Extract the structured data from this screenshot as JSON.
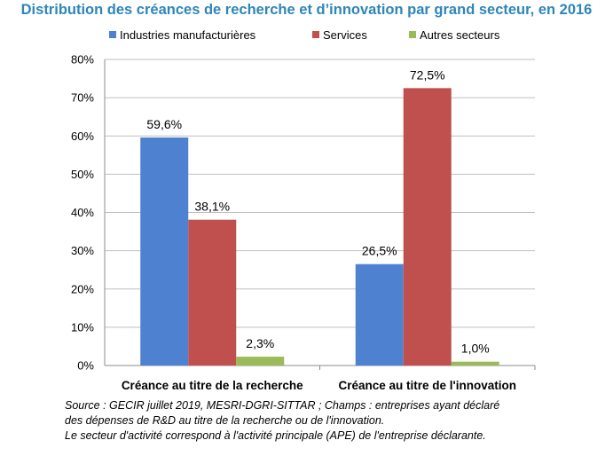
{
  "chart_data": {
    "type": "bar",
    "title": "Distribution des créances de recherche et d’innovation par grand secteur, en 2016",
    "categories": [
      "Créance au titre de la recherche",
      "Créance au titre de l'innovation"
    ],
    "series": [
      {
        "name": "Industries manufacturières",
        "color": "#4f81d1",
        "values": [
          59.6,
          26.5
        ],
        "labels": [
          "59,6%",
          "26,5%"
        ]
      },
      {
        "name": "Services",
        "color": "#c0504d",
        "values": [
          38.1,
          72.5
        ],
        "labels": [
          "38,1%",
          "72,5%"
        ]
      },
      {
        "name": "Autres secteurs",
        "color": "#9bbb59",
        "values": [
          2.3,
          1.0
        ],
        "labels": [
          "2,3%",
          "1,0%"
        ]
      }
    ],
    "yticks": [
      0,
      10,
      20,
      30,
      40,
      50,
      60,
      70,
      80
    ],
    "ytick_labels": [
      "0%",
      "10%",
      "20%",
      "30%",
      "40%",
      "50%",
      "60%",
      "70%",
      "80%"
    ],
    "ylim": [
      0,
      80
    ],
    "grid": true,
    "legend_position": "top"
  },
  "source_lines": [
    "Source : GECIR juillet 2019, MESRI-DGRI-SITTAR ; Champs : entreprises ayant déclaré",
    "des dépenses de R&D au titre de la recherche ou de l'innovation.",
    "Le secteur d'activité correspond à l'activité principale (APE) de l'entreprise déclarante."
  ]
}
